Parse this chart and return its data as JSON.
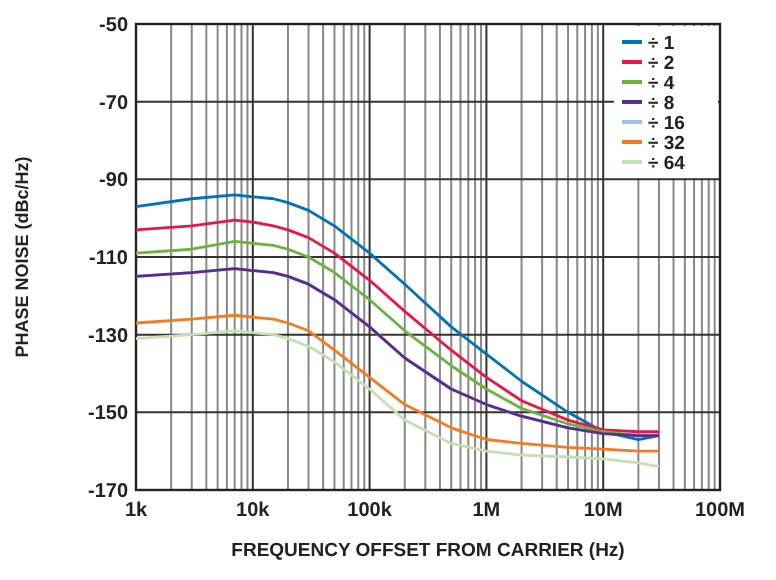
{
  "chart_data": {
    "type": "line",
    "xlabel": "FREQUENCY OFFSET FROM CARRIER (Hz)",
    "ylabel": "PHASE NOISE (dBc/Hz)",
    "log": "x",
    "x": [
      1000,
      3000,
      7000,
      10000,
      15000,
      20000,
      30000,
      50000,
      100000,
      200000,
      500000,
      1000000,
      2000000,
      5000000,
      10000000,
      20000000,
      30000000
    ],
    "xlim": [
      1000,
      100000000
    ],
    "xticks": [
      {
        "value": 1000,
        "label": "1k"
      },
      {
        "value": 10000,
        "label": "10k"
      },
      {
        "value": 100000,
        "label": "100k"
      },
      {
        "value": 1000000,
        "label": "1M"
      },
      {
        "value": 10000000,
        "label": "10M"
      },
      {
        "value": 100000000,
        "label": "100M"
      }
    ],
    "ylim": [
      -170,
      -50
    ],
    "yticks": [
      -170,
      -150,
      -130,
      -110,
      -90,
      -70,
      -50
    ],
    "grid": true,
    "legend": "top right",
    "line_style": "solid",
    "series": [
      {
        "name": "÷ 1",
        "color": "#0072bc",
        "values": [
          -97,
          -95,
          -94,
          -94.5,
          -95,
          -96,
          -98,
          -102,
          -109,
          -117,
          -128,
          -135,
          -142,
          -150,
          -155,
          -157,
          -156
        ]
      },
      {
        "name": "÷ 2",
        "color": "#e8174a",
        "values": [
          -103,
          -102,
          -100.5,
          -101,
          -102,
          -103,
          -105,
          -109,
          -116,
          -124,
          -134,
          -141,
          -147,
          -152,
          -154.5,
          -155,
          -155
        ]
      },
      {
        "name": "÷ 4",
        "color": "#6cb43f",
        "values": [
          -109,
          -108,
          -106,
          -106.5,
          -107,
          -108,
          -110,
          -114,
          -121,
          -129,
          -138,
          -144,
          -149,
          -153,
          -155,
          -156,
          -156
        ]
      },
      {
        "name": "÷ 8",
        "color": "#5b2c90",
        "values": [
          -115,
          -114,
          -113,
          -113.5,
          -114,
          -115,
          -117,
          -121,
          -128,
          -136,
          -144,
          -148,
          -151,
          -154,
          -155.5,
          -156,
          -156
        ]
      },
      {
        "name": "÷ 16",
        "color": "#9cc3e6",
        "values": [
          -115,
          -114,
          -113,
          -113.5,
          -114,
          -115,
          -117,
          -121,
          -128,
          -136,
          -144,
          -148,
          -151,
          -154,
          -155.5,
          -156,
          -156
        ]
      },
      {
        "name": "÷ 32",
        "color": "#f47b20",
        "values": [
          -127,
          -126,
          -125,
          -125.5,
          -126,
          -127,
          -129,
          -134,
          -141,
          -148,
          -154,
          -157,
          -158,
          -159,
          -159.5,
          -160,
          -160
        ]
      },
      {
        "name": "÷ 64",
        "color": "#c5e0b4",
        "values": [
          -131,
          -130,
          -129,
          -129.5,
          -130,
          -131,
          -133,
          -137,
          -144,
          -152,
          -158,
          -160,
          -161,
          -161.5,
          -162,
          -163,
          -164
        ]
      }
    ]
  }
}
